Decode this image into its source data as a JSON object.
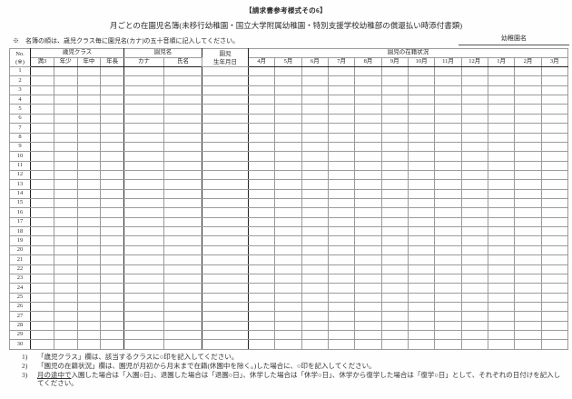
{
  "header": {
    "title": "【請求書参考様式その6】",
    "subtitle": "月ごとの在園児名簿(未移行幼稚園・国立大学附属幼稚園・特別支援学校幼稚部の償還払い時添付書類)",
    "sort_note": "※　名簿の順は、歳児クラス毎に園児名(カナ)の五十音順に記入してください。",
    "kindergarten_name_label": "幼稚園名"
  },
  "table": {
    "no_header": [
      "No.",
      "(※)"
    ],
    "age_class_group": "歳児クラス",
    "age_class_columns": [
      "満3",
      "年少",
      "年中",
      "年長"
    ],
    "name_group": "園児名",
    "name_columns": [
      "カナ",
      "氏名"
    ],
    "birthdate_header": [
      "園児",
      "生年月日"
    ],
    "enrollment_group": "園児の在籍状況",
    "month_columns": [
      "4月",
      "5月",
      "6月",
      "7月",
      "8月",
      "9月",
      "10月",
      "11月",
      "12月",
      "1月",
      "2月",
      "3月"
    ],
    "row_numbers": [
      "1",
      "2",
      "3",
      "4",
      "5",
      "6",
      "7",
      "8",
      "9",
      "10",
      "11",
      "12",
      "13",
      "14",
      "15",
      "16",
      "17",
      "18",
      "19",
      "20",
      "21",
      "22",
      "23",
      "24",
      "25",
      "26",
      "27",
      "28",
      "29",
      "30"
    ]
  },
  "footnotes": [
    {
      "num": "1)",
      "underlined": "",
      "text": "「歳児クラス」欄は、該当するクラスに○印を記入してください。"
    },
    {
      "num": "2)",
      "underlined": "",
      "text": "「園児の在籍状況」欄は、園児が月初から月末まで在籍(休園中を除く。)した場合に、○印を記入してください。"
    },
    {
      "num": "3)",
      "underlined": "月の途中で",
      "text": "入園した場合は「入園○日」、退園した場合は「退園○日」、休学した場合は「休学○日」、休学から復学した場合は「復学○日」として、それぞれの日付けを記入してください。"
    }
  ],
  "colors": {
    "thin_line": "#9b9b9b",
    "thick_line": "#222222",
    "text": "#2a2a2a",
    "background": "#fefefe"
  }
}
